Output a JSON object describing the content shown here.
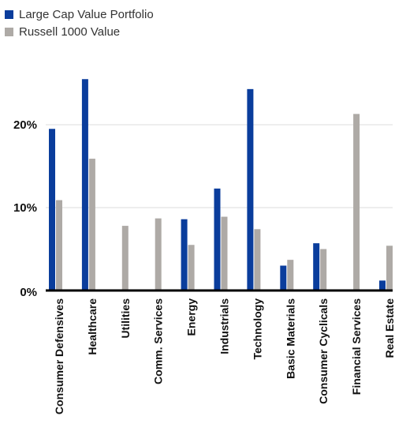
{
  "chart_data": {
    "type": "bar",
    "categories": [
      "Consumer Defensives",
      "Healthcare",
      "Utilities",
      "Comm. Services",
      "Energy",
      "Industrials",
      "Technology",
      "Basic Materials",
      "Consumer Cyclicals",
      "Financial Services",
      "Real Estate"
    ],
    "series": [
      {
        "name": "Large Cap Value Portfolio",
        "color": "#0a3d9c",
        "values": [
          19.5,
          25.5,
          0,
          0,
          8.6,
          12.3,
          24.3,
          3.0,
          5.7,
          0,
          1.2
        ]
      },
      {
        "name": "Russell 1000 Value",
        "color": "#aeaaa6",
        "values": [
          10.9,
          15.9,
          7.8,
          8.7,
          5.5,
          8.9,
          7.4,
          3.7,
          5.0,
          21.3,
          5.4
        ]
      }
    ],
    "ylim": [
      0,
      30
    ],
    "yticks": [
      {
        "value": 0,
        "label": "0%"
      },
      {
        "value": 10,
        "label": "10%"
      },
      {
        "value": 20,
        "label": "20%"
      }
    ],
    "grid": true,
    "legend": "top-left"
  }
}
